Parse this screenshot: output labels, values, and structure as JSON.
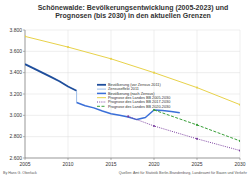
{
  "chart_data": {
    "type": "line",
    "title": "Schönewalde: Bevölkerungsentwicklung (2005-2023) und Prognosen (bis 2030) in den aktuellen Grenzen",
    "xlim": [
      2005,
      2030
    ],
    "xticks": [
      2005,
      2010,
      2015,
      2020,
      2025,
      2030
    ],
    "ylim": [
      2600,
      3800
    ],
    "yticks": [
      {
        "value": 2600,
        "label": "2.600"
      },
      {
        "value": 2800,
        "label": "2.800"
      },
      {
        "value": 3000,
        "label": "3.000"
      },
      {
        "value": 3200,
        "label": "3.200"
      },
      {
        "value": 3400,
        "label": "3.400"
      },
      {
        "value": 3600,
        "label": "3.600"
      },
      {
        "value": 3800,
        "label": "3.800"
      }
    ],
    "grid": true,
    "series": [
      {
        "name": "Bevölkerung (vor Zensus 2011)",
        "color": "#1f4e9c",
        "line_style": "solid",
        "marker": "none",
        "x": [
          2005,
          2006,
          2007,
          2008,
          2009,
          2010,
          2011
        ],
        "values": [
          3480,
          3440,
          3400,
          3360,
          3320,
          3270,
          3230
        ]
      },
      {
        "name": "Zensuseffekt 2011",
        "color": "#9dbde8",
        "line_style": "solid",
        "marker": "none",
        "x": [
          2011,
          2011
        ],
        "values": [
          3230,
          3120
        ]
      },
      {
        "name": "Bevölkerung (nach Zensus)",
        "color": "#3a6fd8",
        "line_style": "solid",
        "marker": "none",
        "x": [
          2011,
          2012,
          2013,
          2014,
          2015,
          2016,
          2017,
          2018,
          2019,
          2020,
          2021,
          2022,
          2023
        ],
        "values": [
          3120,
          3090,
          3070,
          3040,
          3015,
          3000,
          2985,
          2960,
          2980,
          3050,
          3045,
          3035,
          3025
        ]
      },
      {
        "name": "Prognose des Landes BB 2005-2030",
        "color": "#e8d24a",
        "line_style": "solid",
        "marker": "circle",
        "x": [
          2005,
          2010,
          2015,
          2020,
          2025,
          2030
        ],
        "values": [
          3740,
          3640,
          3530,
          3400,
          3260,
          3100
        ]
      },
      {
        "name": "Prognose des Landes BB 2017-2030",
        "color": "#7b3fa0",
        "line_style": "dotted",
        "marker": "circle",
        "x": [
          2017,
          2020,
          2025,
          2030
        ],
        "values": [
          2990,
          2900,
          2780,
          2670
        ]
      },
      {
        "name": "Prognose des Landes BB 2020-2030",
        "color": "#3aa03a",
        "line_style": "dashed",
        "marker": "circle",
        "x": [
          2020,
          2025,
          2030
        ],
        "values": [
          3050,
          2910,
          2760
        ]
      }
    ],
    "legend": "center",
    "author": "By Hans G. Oberlack",
    "source": "Quellen: Amt für Statistik Berlin-Brandenburg, Landesamt für Bauen und Verkehr"
  }
}
